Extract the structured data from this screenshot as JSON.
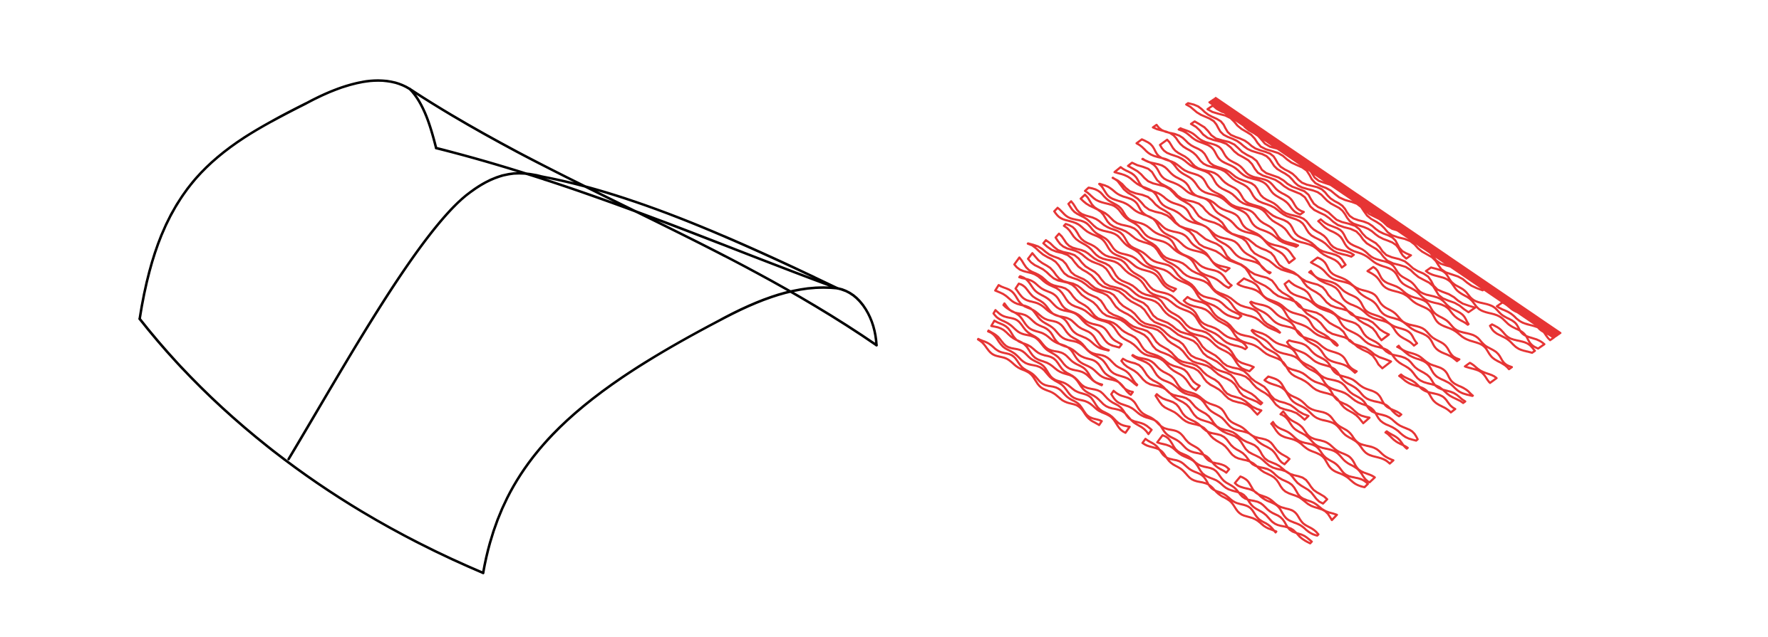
{
  "figure": {
    "left_panel": {
      "name": "surface-wireframe",
      "stroke_color": "#000000"
    },
    "right_panel": {
      "name": "labyrinth-pattern-on-surface",
      "stroke_color": "#e63535"
    }
  }
}
